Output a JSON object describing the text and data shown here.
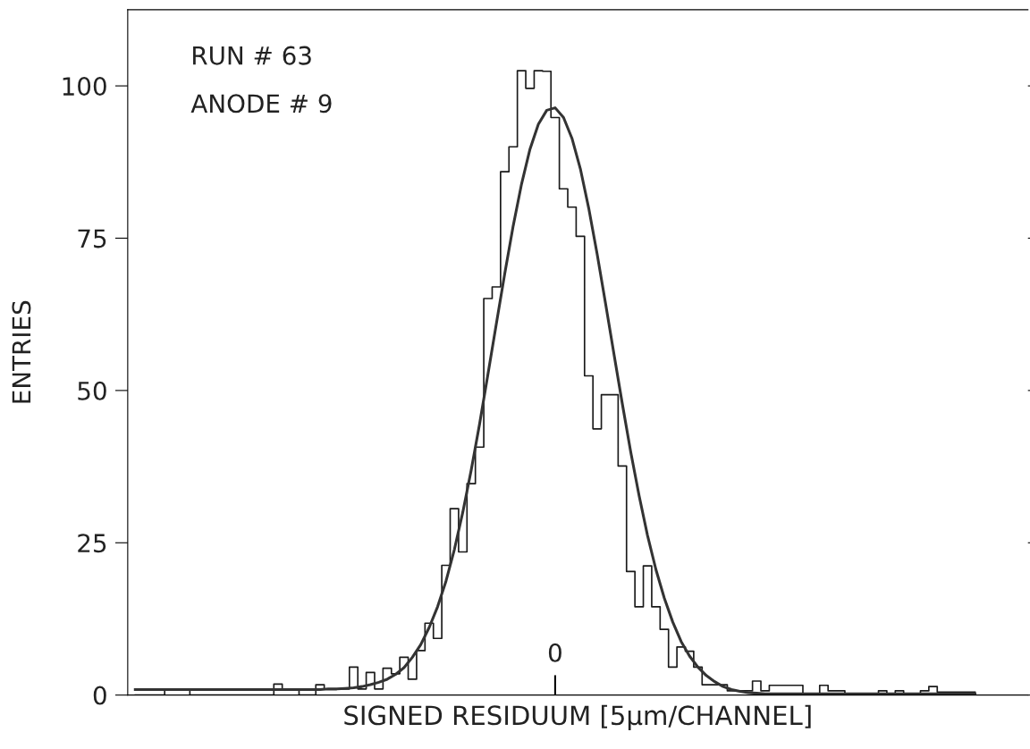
{
  "chart_data": {
    "type": "step",
    "xlabel": "SIGNED RESIDUUM [5μm/CHANNEL]",
    "ylabel": "ENTRIES",
    "annotations": [
      "RUN # 63",
      "ANODE # 9"
    ],
    "categories": [
      null,
      null,
      null,
      null,
      null,
      null,
      null,
      null,
      null,
      null,
      null,
      null,
      null,
      null,
      null,
      null,
      null,
      null,
      null,
      null,
      null,
      null,
      null,
      null,
      null,
      null,
      null,
      null,
      null,
      null,
      null,
      null,
      null,
      null,
      null,
      null,
      null,
      null,
      null,
      null,
      null,
      null,
      null,
      null,
      null,
      null,
      null,
      null,
      null,
      null,
      "0",
      null,
      null,
      null,
      null,
      null,
      null,
      null,
      null,
      null,
      null,
      null,
      null,
      null,
      null,
      null,
      null,
      null,
      null,
      null,
      null,
      null,
      null,
      null,
      null,
      null,
      null,
      null,
      null,
      null,
      null,
      null,
      null,
      null,
      null,
      null,
      null,
      null,
      null,
      null,
      null,
      null,
      null,
      null,
      null,
      null,
      null,
      null,
      null,
      null,
      null
    ],
    "series": [
      {
        "color": "#1a1a1a",
        "values": [
          0,
          0,
          0,
          0,
          1,
          1,
          1,
          0,
          0,
          0,
          0,
          0,
          0,
          0,
          0,
          0,
          0,
          1.8,
          1,
          1,
          0,
          0,
          1.7,
          1,
          1,
          1,
          4.6,
          1,
          3.7,
          1,
          4.4,
          3.5,
          6.2,
          2.6,
          7.3,
          11.8,
          9.3,
          21.3,
          30.6,
          23.5,
          34.7,
          40.7,
          65.1,
          67,
          85.9,
          90,
          102.5,
          99.6,
          102.5,
          102.4,
          94.8,
          83.1,
          80.1,
          75.3,
          52.4,
          43.7,
          49.3,
          49.3,
          37.6,
          20.3,
          14.5,
          21.2,
          14.5,
          10.8,
          4.6,
          7.9,
          7.2,
          4.6,
          1.7,
          1.7,
          1.7,
          0.7,
          0.7,
          0.7,
          2.3,
          0.7,
          1.6,
          1.6,
          1.6,
          1.6,
          0,
          0,
          1.6,
          0.7,
          0.7,
          0,
          0,
          0,
          0,
          0.7,
          0,
          0.7,
          0,
          0,
          0.7,
          1.4,
          0.5,
          0.5,
          0.5,
          0.5,
          0.5
        ]
      },
      {
        "type": "line",
        "color": "#333333",
        "values": [
          0.9,
          0.9,
          0.9,
          0.9,
          0.9,
          0.9,
          0.9,
          0.9,
          0.9,
          0.9,
          0.9,
          0.9,
          0.9,
          0.9,
          0.9,
          0.9,
          0.9,
          0.9,
          0.9,
          0.9,
          0.9,
          0.9,
          0.9,
          1.0,
          1.0,
          1.1,
          1.2,
          1.4,
          1.7,
          2.1,
          2.6,
          3.4,
          4.5,
          6.2,
          8.3,
          11.1,
          14.5,
          18.7,
          23.9,
          30.0,
          36.9,
          44.5,
          52.7,
          61.0,
          69.2,
          77.0,
          83.9,
          89.6,
          93.7,
          96.0,
          96.4,
          94.8,
          91.4,
          86.4,
          79.9,
          72.4,
          64.3,
          56.0,
          47.8,
          39.9,
          32.7,
          26.2,
          20.6,
          15.9,
          12.0,
          8.8,
          6.4,
          4.6,
          3.2,
          2.2,
          1.4,
          0.9,
          0.6,
          0.4,
          0.3,
          0.2,
          0.2,
          0.2,
          0.2,
          0.2,
          0.2,
          0.2,
          0.2,
          0.2,
          0.2,
          0.2,
          0.2,
          0.2,
          0.2,
          0.2,
          0.2,
          0.2,
          0.2,
          0.2,
          0.2,
          0.2,
          0.2,
          0.2,
          0.2,
          0.2,
          0.2
        ]
      }
    ],
    "ylim": [
      0,
      112.5
    ],
    "yticks": [
      0,
      25,
      50,
      75,
      100
    ]
  }
}
